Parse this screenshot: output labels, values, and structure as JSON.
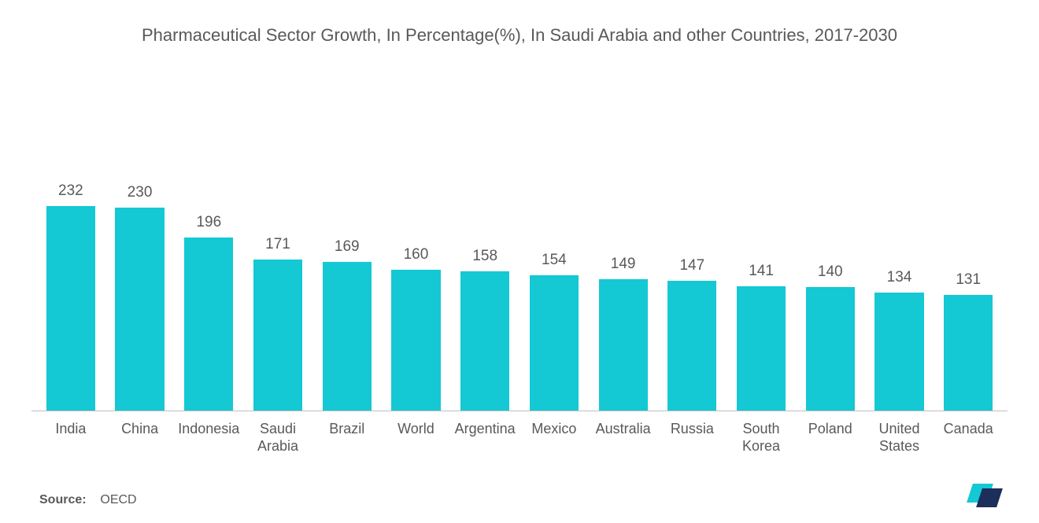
{
  "chart": {
    "type": "bar",
    "title": "Pharmaceutical Sector Growth, In Percentage(%), In Saudi Arabia and other Countries, 2017-2030",
    "title_fontsize": 22,
    "title_color": "#59595b",
    "bar_color": "#14c8d4",
    "value_color": "#59595b",
    "value_fontsize": 19,
    "label_color": "#59595b",
    "label_fontsize": 18,
    "background_color": "#ffffff",
    "axis_line_color": "#bfbfbf",
    "ylim": [
      0,
      250
    ],
    "bar_width": 0.78,
    "categories": [
      "India",
      "China",
      "Indonesia",
      "Saudi Arabia",
      "Brazil",
      "World",
      "Argentina",
      "Mexico",
      "Australia",
      "Russia",
      "South Korea",
      "Poland",
      "United States",
      "Canada"
    ],
    "values": [
      232,
      230,
      196,
      171,
      169,
      160,
      158,
      154,
      149,
      147,
      141,
      140,
      134,
      131
    ]
  },
  "source": {
    "label": "Source:",
    "value": "OECD"
  },
  "logo": {
    "front_color": "#1c2e5a",
    "back_color": "#14c8d4"
  }
}
